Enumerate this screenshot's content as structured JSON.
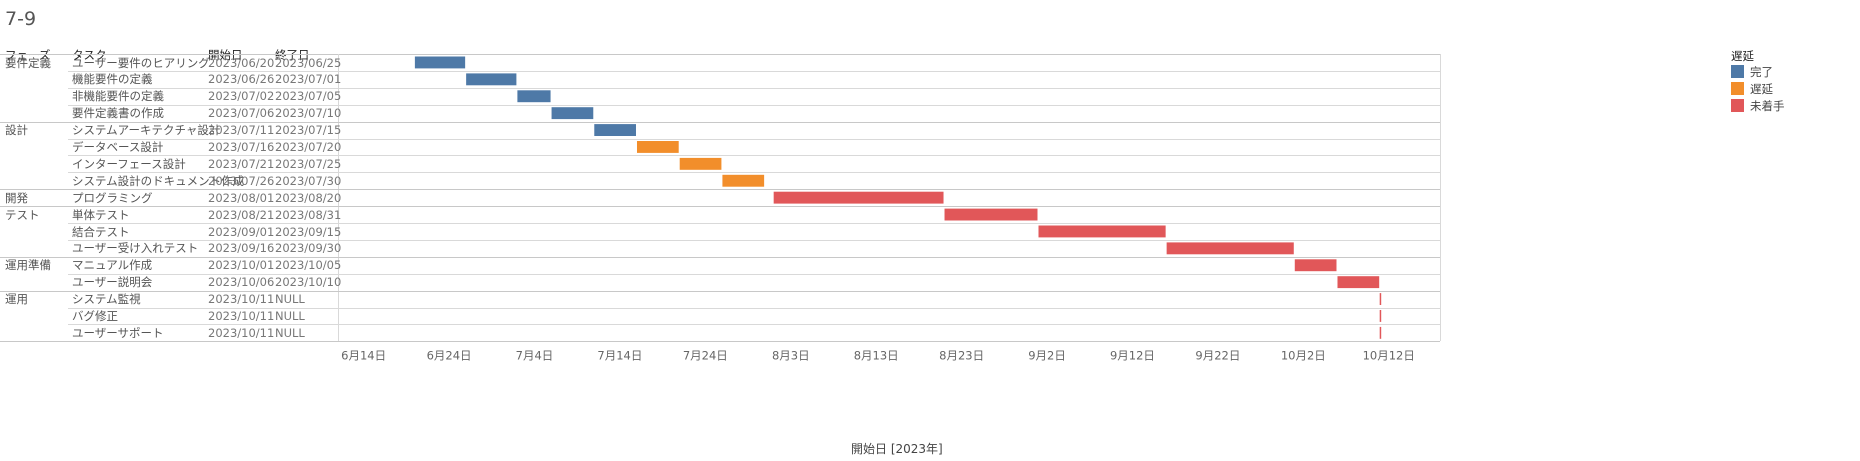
{
  "title": "7-9",
  "headers": {
    "phase": "フェーズ",
    "task": "タスク",
    "start": "開始日",
    "end": "終了日"
  },
  "legend": {
    "title": "遅延",
    "items": [
      {
        "label": "完了",
        "color": "#4e79a7"
      },
      {
        "label": "遅延",
        "color": "#f28e2b"
      },
      {
        "label": "未着手",
        "color": "#e15759"
      }
    ]
  },
  "chart_data": {
    "type": "gantt",
    "x_axis_title": "開始日 [2023年]",
    "x_range": [
      "2023-06-11",
      "2023-10-18"
    ],
    "x_ticks": [
      {
        "date": "2023-06-14",
        "label": "6月14日"
      },
      {
        "date": "2023-06-24",
        "label": "6月24日"
      },
      {
        "date": "2023-07-04",
        "label": "7月4日"
      },
      {
        "date": "2023-07-14",
        "label": "7月14日"
      },
      {
        "date": "2023-07-24",
        "label": "7月24日"
      },
      {
        "date": "2023-08-03",
        "label": "8月3日"
      },
      {
        "date": "2023-08-13",
        "label": "8月13日"
      },
      {
        "date": "2023-08-23",
        "label": "8月23日"
      },
      {
        "date": "2023-09-02",
        "label": "9月2日"
      },
      {
        "date": "2023-09-12",
        "label": "9月12日"
      },
      {
        "date": "2023-09-22",
        "label": "9月22日"
      },
      {
        "date": "2023-10-02",
        "label": "10月2日"
      },
      {
        "date": "2023-10-12",
        "label": "10月12日"
      }
    ],
    "tasks": [
      {
        "phase": "要件定義",
        "task": "ユーザー要件のヒアリング",
        "start": "2023/06/20",
        "end": "2023/06/25",
        "status": "完了"
      },
      {
        "phase": "",
        "task": "機能要件の定義",
        "start": "2023/06/26",
        "end": "2023/07/01",
        "status": "完了"
      },
      {
        "phase": "",
        "task": "非機能要件の定義",
        "start": "2023/07/02",
        "end": "2023/07/05",
        "status": "完了"
      },
      {
        "phase": "",
        "task": "要件定義書の作成",
        "start": "2023/07/06",
        "end": "2023/07/10",
        "status": "完了"
      },
      {
        "phase": "設計",
        "task": "システムアーキテクチャ設計",
        "start": "2023/07/11",
        "end": "2023/07/15",
        "status": "完了"
      },
      {
        "phase": "",
        "task": "データベース設計",
        "start": "2023/07/16",
        "end": "2023/07/20",
        "status": "遅延"
      },
      {
        "phase": "",
        "task": "インターフェース設計",
        "start": "2023/07/21",
        "end": "2023/07/25",
        "status": "遅延"
      },
      {
        "phase": "",
        "task": "システム設計のドキュメント作成",
        "start": "2023/07/26",
        "end": "2023/07/30",
        "status": "遅延"
      },
      {
        "phase": "開発",
        "task": "プログラミング",
        "start": "2023/08/01",
        "end": "2023/08/20",
        "status": "未着手"
      },
      {
        "phase": "テスト",
        "task": "単体テスト",
        "start": "2023/08/21",
        "end": "2023/08/31",
        "status": "未着手"
      },
      {
        "phase": "",
        "task": "結合テスト",
        "start": "2023/09/01",
        "end": "2023/09/15",
        "status": "未着手"
      },
      {
        "phase": "",
        "task": "ユーザー受け入れテスト",
        "start": "2023/09/16",
        "end": "2023/09/30",
        "status": "未着手"
      },
      {
        "phase": "運用準備",
        "task": "マニュアル作成",
        "start": "2023/10/01",
        "end": "2023/10/05",
        "status": "未着手"
      },
      {
        "phase": "",
        "task": "ユーザー説明会",
        "start": "2023/10/06",
        "end": "2023/10/10",
        "status": "未着手"
      },
      {
        "phase": "運用",
        "task": "システム監視",
        "start": "2023/10/11",
        "end": "NULL",
        "status": "未着手"
      },
      {
        "phase": "",
        "task": "バグ修正",
        "start": "2023/10/11",
        "end": "NULL",
        "status": "未着手"
      },
      {
        "phase": "",
        "task": "ユーザーサポート",
        "start": "2023/10/11",
        "end": "NULL",
        "status": "未着手"
      }
    ]
  }
}
